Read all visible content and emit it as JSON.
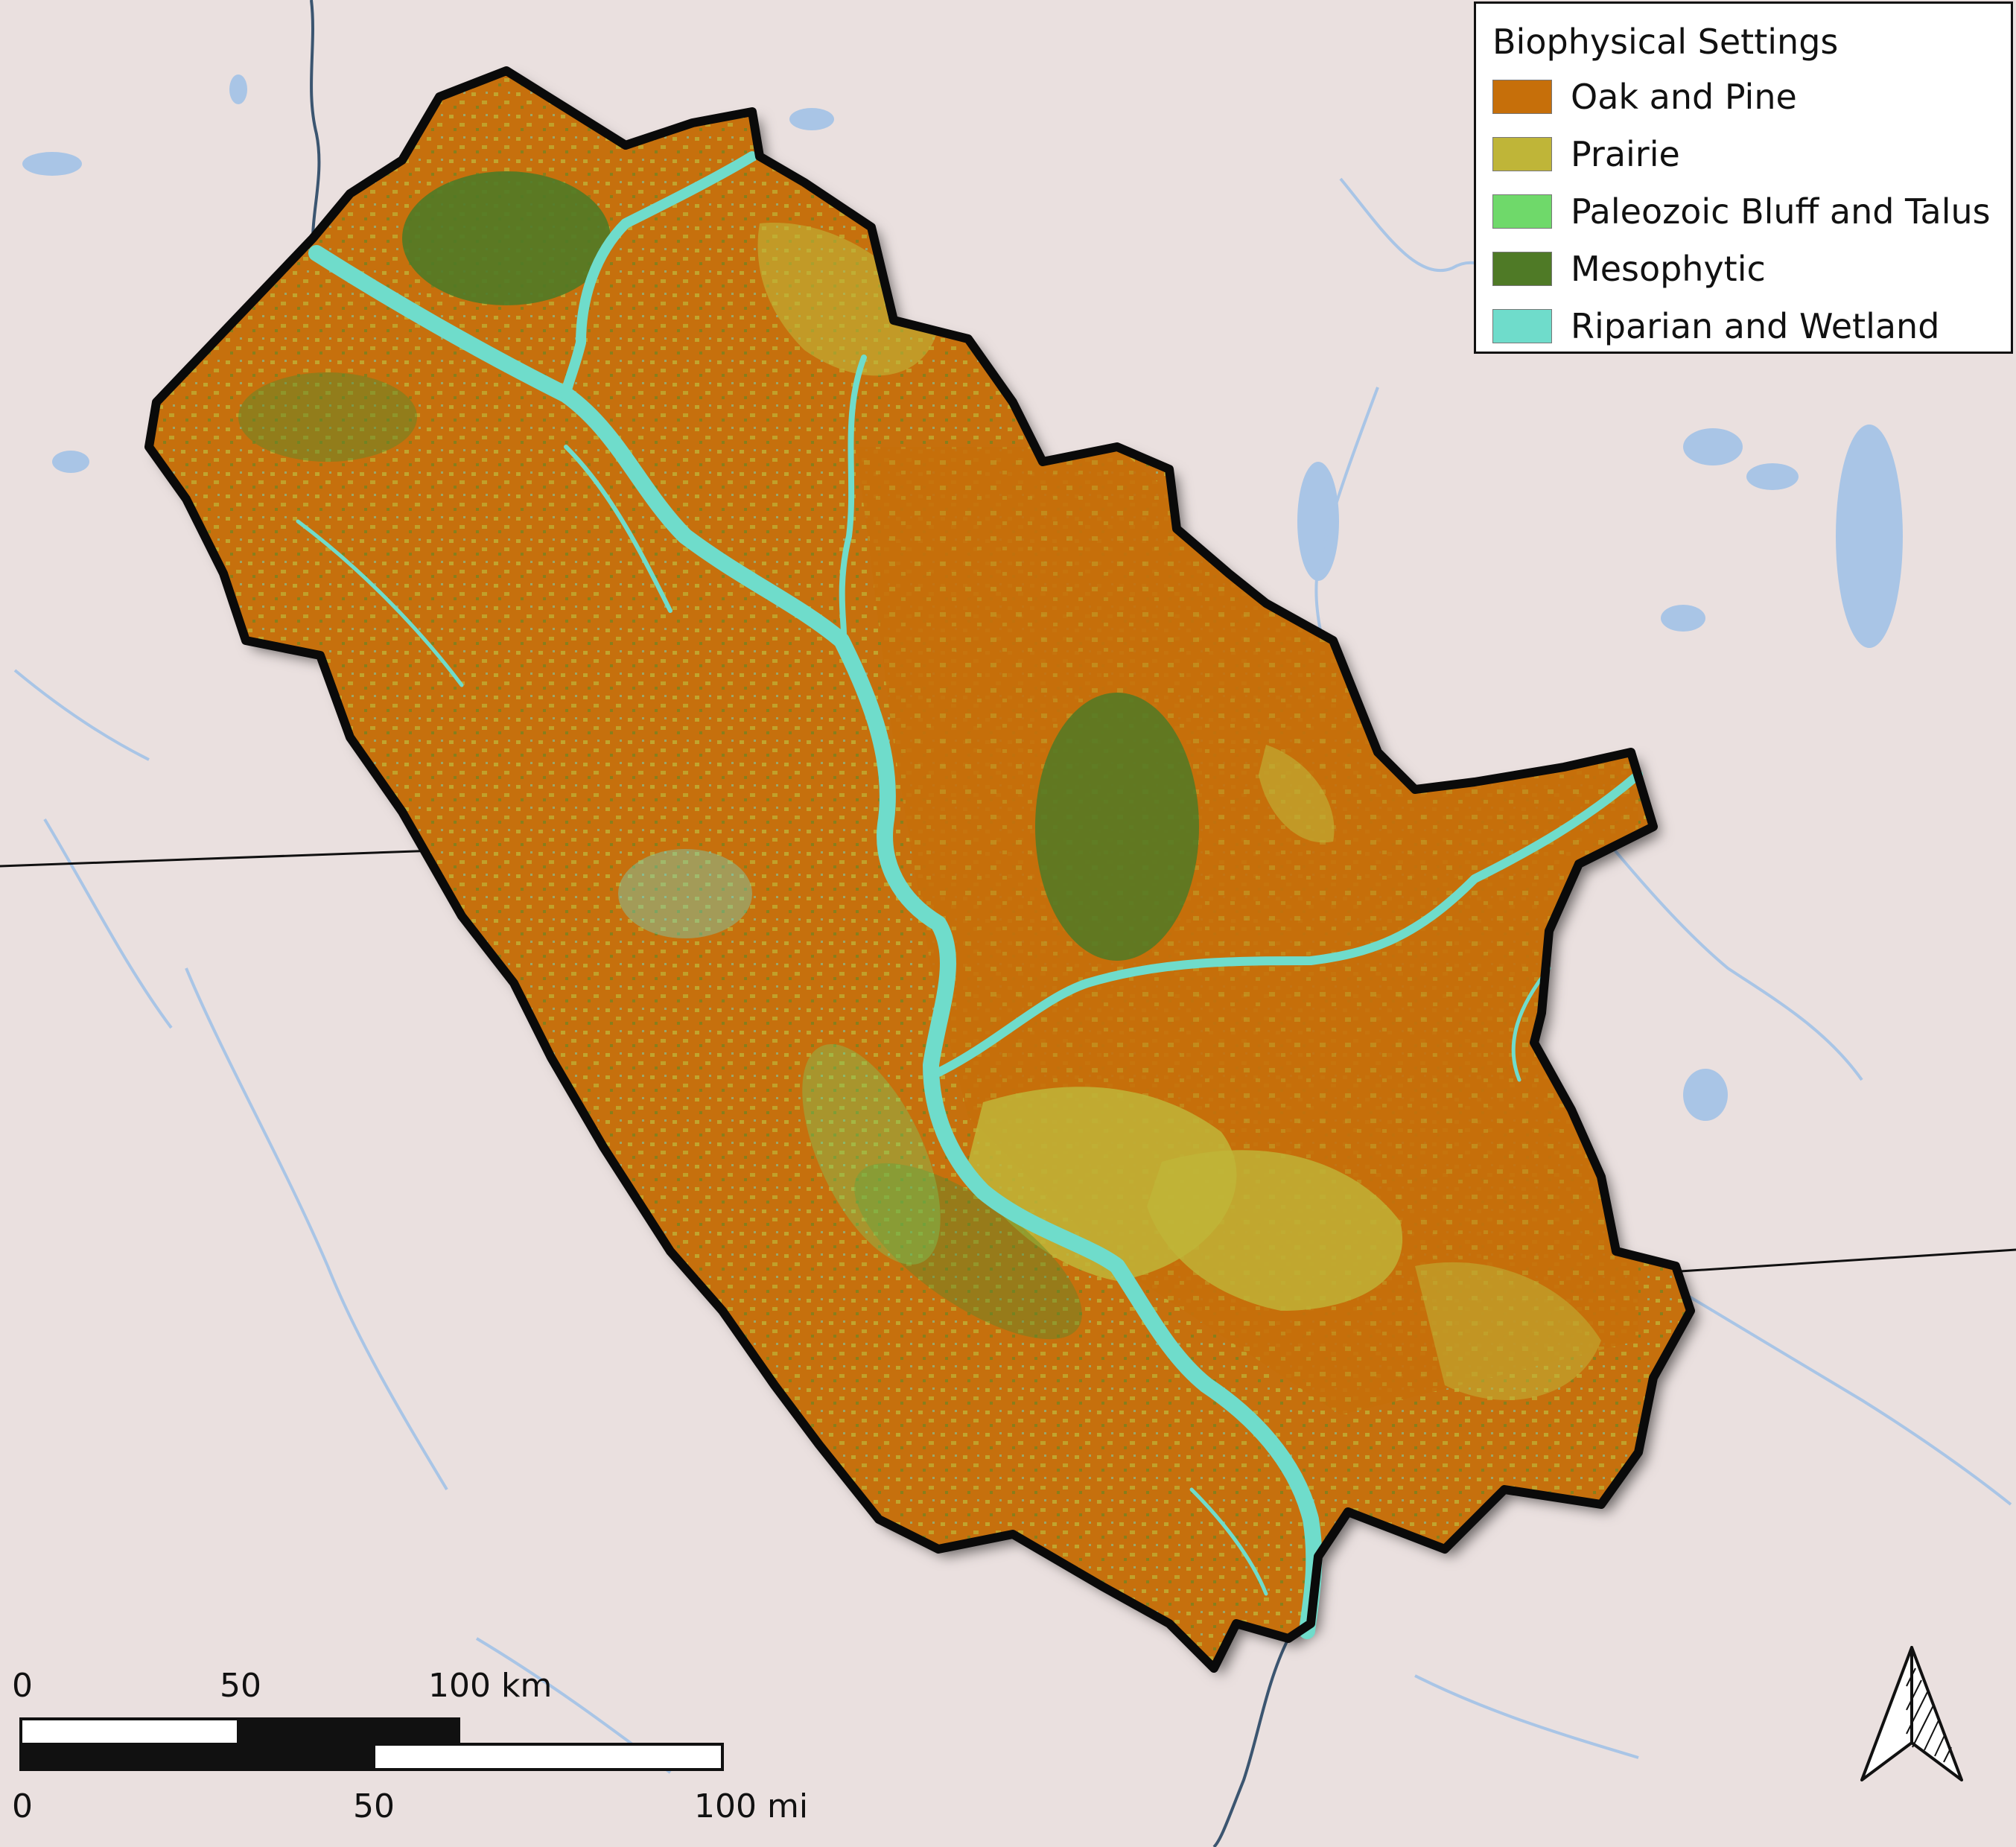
{
  "legend": {
    "title": "Biophysical Settings",
    "items": [
      {
        "label": "Oak and Pine",
        "color": "#c66f0a"
      },
      {
        "label": "Prairie",
        "color": "#bfb538"
      },
      {
        "label": "Paleozoic Bluff and Talus",
        "color": "#6fd96a"
      },
      {
        "label": "Mesophytic",
        "color": "#4f7a26"
      },
      {
        "label": "Riparian and Wetland",
        "color": "#6fdccb"
      }
    ]
  },
  "scalebar": {
    "km_ticks": [
      "0",
      "50",
      "100 km"
    ],
    "mi_ticks": [
      "0",
      "50",
      "100 mi"
    ]
  },
  "north_arrow": {
    "icon": "north-arrow-icon"
  },
  "colors": {
    "basemap": "#eae0df",
    "water": "#a9c5e6",
    "boundary": "#0a0a0a"
  }
}
